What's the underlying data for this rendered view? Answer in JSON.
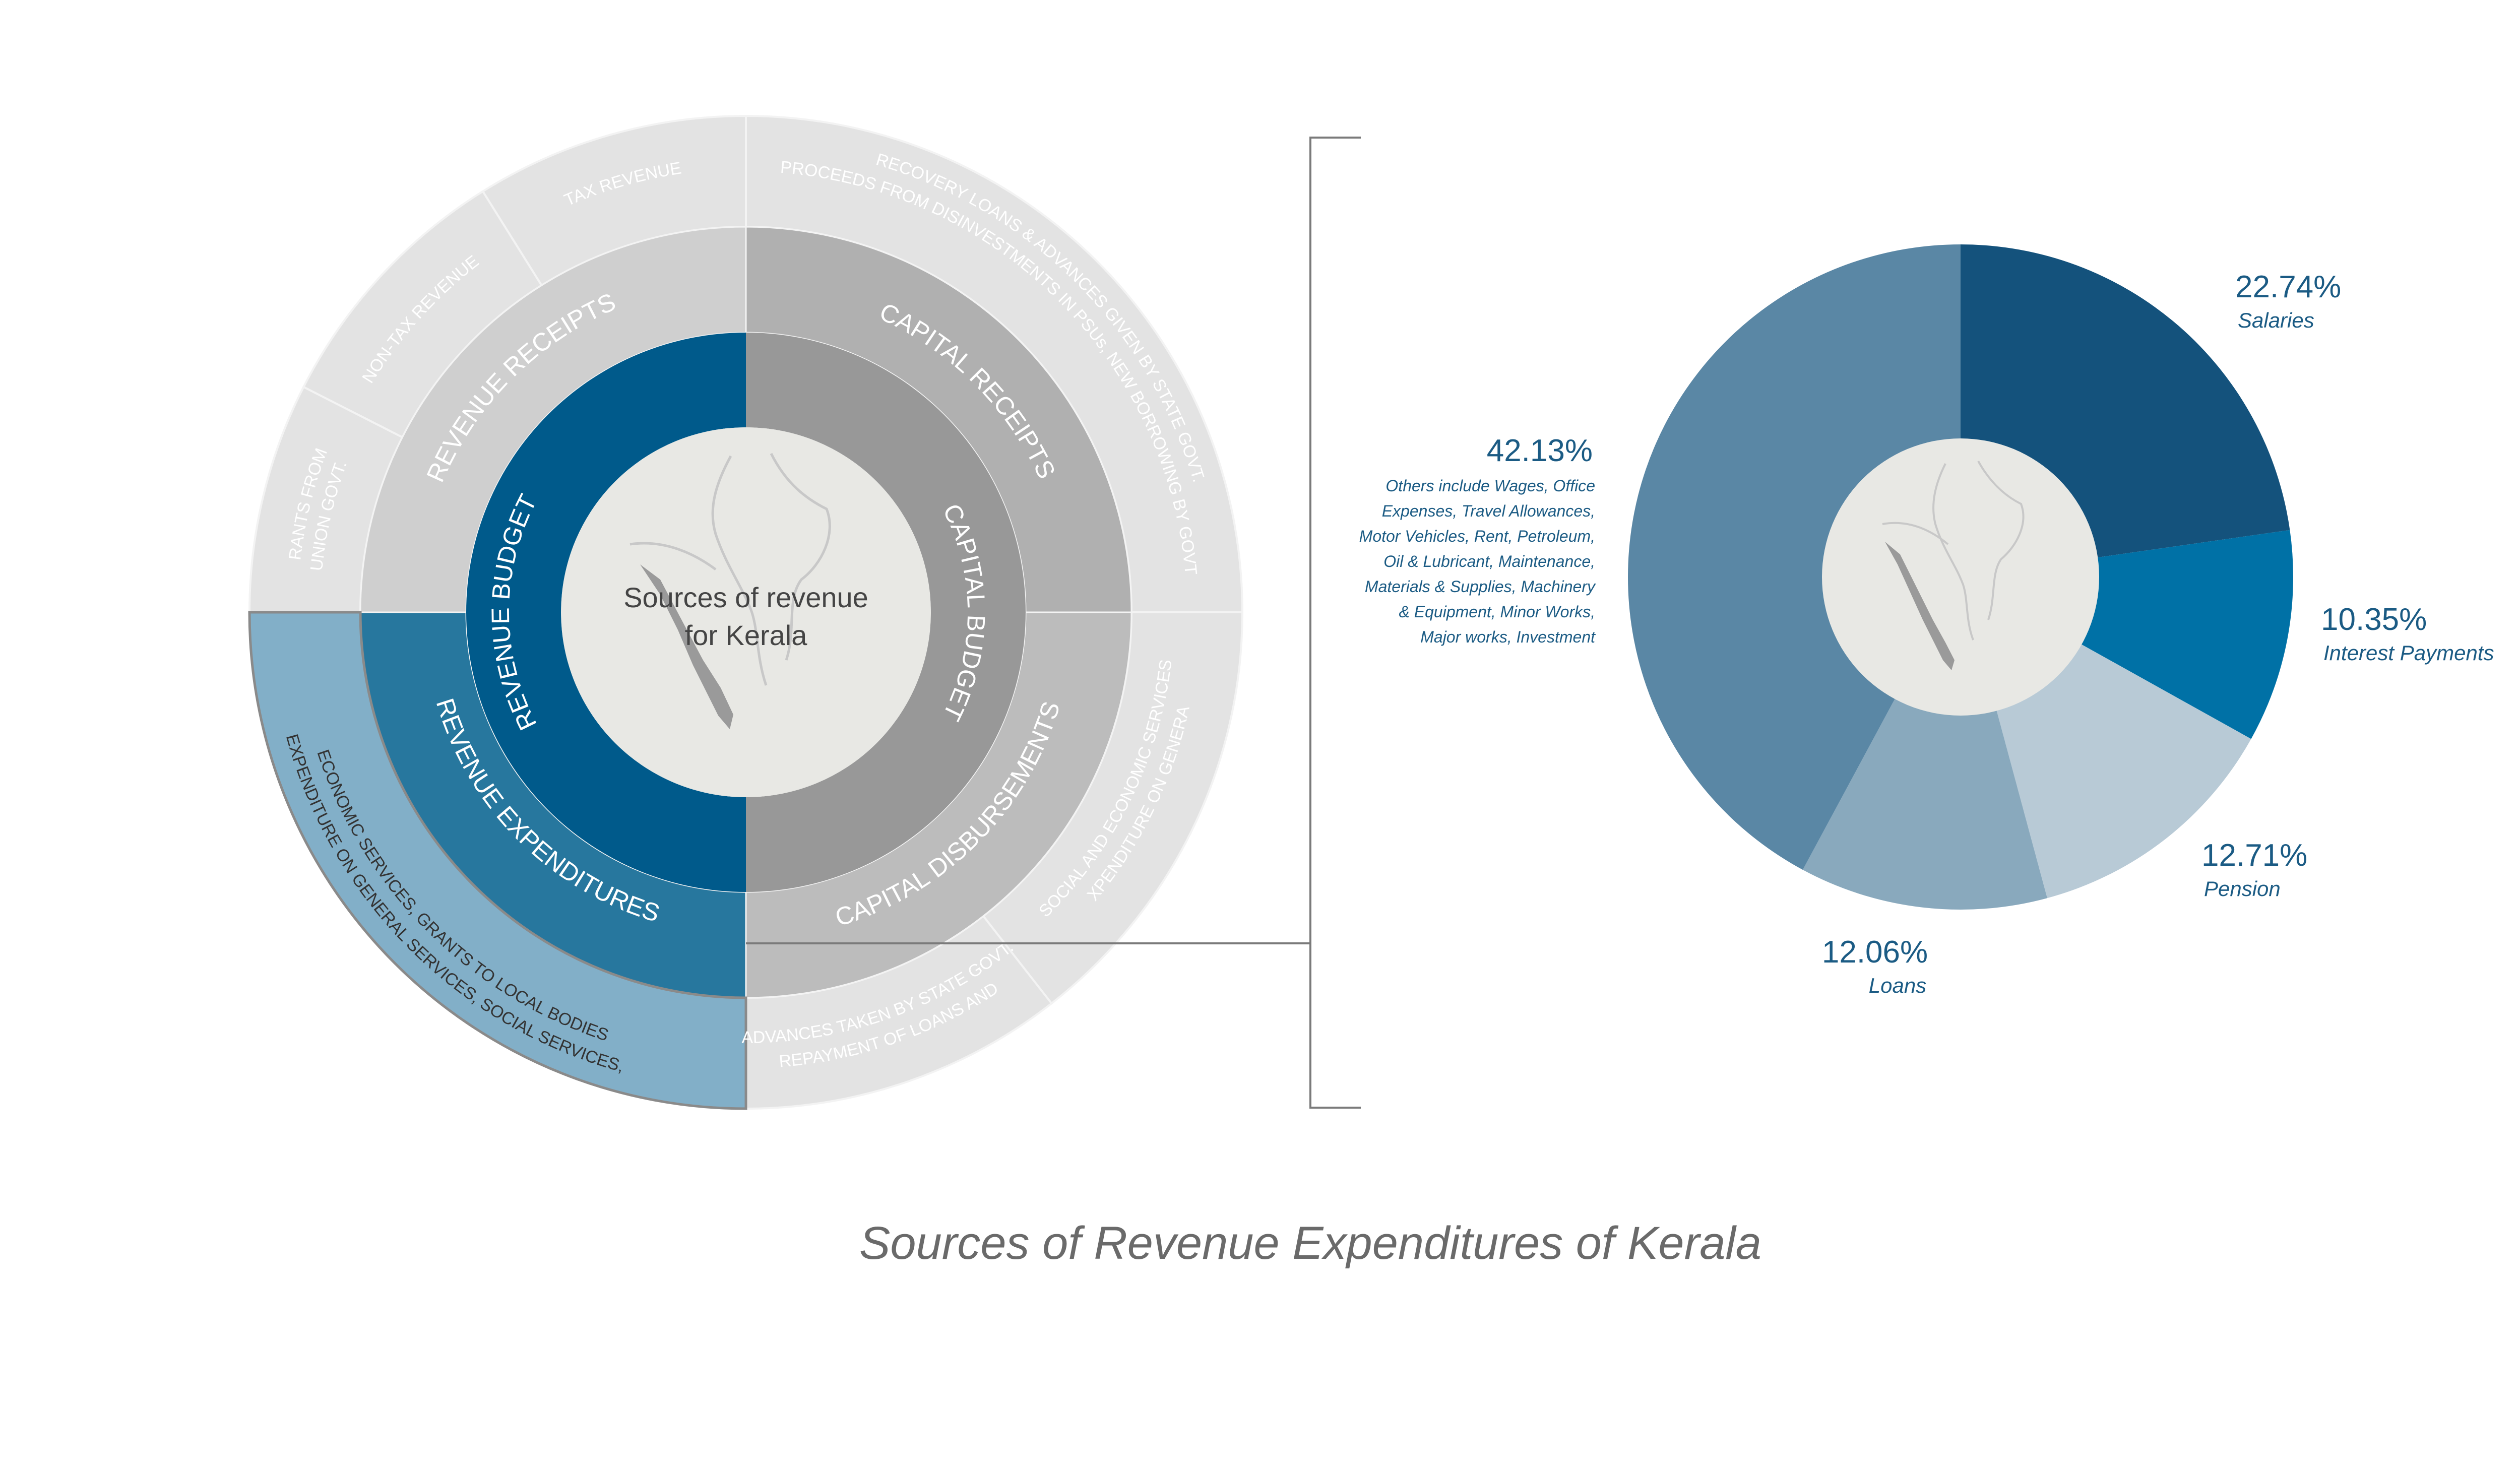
{
  "title": "Sources of Revenue Expenditures of Kerala",
  "center_label": [
    "Sources of revenue",
    "for Kerala"
  ],
  "sunburst": {
    "inner": [
      {
        "name": "inner-revenue-budget",
        "label": "REVENUE  BUDGET",
        "color": "#005a8b",
        "text_color": "#ffffff"
      },
      {
        "name": "inner-capital-budget",
        "label": "CAPITAL  BUDGET",
        "color": "#989898",
        "text_color": "#ffffff"
      }
    ],
    "middle": [
      {
        "name": "middle-revenue-receipts",
        "label": "REVENUE RECEIPTS",
        "color": "#cfcfcf",
        "text_color": "#ffffff"
      },
      {
        "name": "middle-capital-receipts",
        "label": "CAPITAL RECEIPTS",
        "color": "#b0b0b0",
        "text_color": "#ffffff"
      },
      {
        "name": "middle-capital-disbursements",
        "label": "CAPITAL  DISBURSEMENTS",
        "color": "#bcbcbc",
        "text_color": "#ffffff"
      },
      {
        "name": "middle-revenue-expenditures",
        "label": "REVENUE  EXPENDITURES",
        "color": "#27779e",
        "text_color": "#ffffff"
      }
    ],
    "outer": [
      {
        "name": "outer-grants-union",
        "lines": [
          "GRANTS FROM",
          "UNION GOVT."
        ],
        "color": "#e3e3e3",
        "text_color": "#ffffff"
      },
      {
        "name": "outer-non-tax-revenue",
        "lines": [
          "NON-TAX REVENUE"
        ],
        "color": "#e3e3e3",
        "text_color": "#ffffff"
      },
      {
        "name": "outer-tax-revenue",
        "lines": [
          "TAX REVENUE"
        ],
        "color": "#e3e3e3",
        "text_color": "#ffffff"
      },
      {
        "name": "outer-capital-receipts-detail",
        "lines": [
          "RECOVERY LOANS & ADVANCES GIVEN BY STATE GOVT.",
          "PROCEEDS FROM DISINVESTMENTS IN PSUs, NEW BORROWING BY GOVT."
        ],
        "color": "#e3e3e3",
        "text_color": "#ffffff"
      },
      {
        "name": "outer-exp-general-social",
        "lines": [
          "EXPENDITURE ON GENERAL",
          "SOCIAL AND ECONOMIC SERVICES"
        ],
        "color": "#e3e3e3",
        "text_color": "#ffffff"
      },
      {
        "name": "outer-repayment-loans",
        "lines": [
          "REPAYMENT OF LOANS AND",
          "ADVANCES TAKEN BY STATE GOVT."
        ],
        "color": "#e3e3e3",
        "text_color": "#ffffff"
      },
      {
        "name": "outer-revenue-exp-detail",
        "lines": [
          "EXPENDITURE ON GENERAL SERVICES, SOCIAL SERVICES,",
          "ECONOMIC SERVICES, GRANTS TO LOCAL BODIES"
        ],
        "color": "#82afc8",
        "text_color": "#333333"
      }
    ]
  },
  "chart_data": {
    "type": "pie",
    "title": "Sources of Revenue Expenditures of Kerala",
    "categories": [
      "Salaries",
      "Interest Payments",
      "Pension",
      "Loans",
      "Others"
    ],
    "values": [
      22.74,
      10.35,
      12.71,
      12.06,
      42.13
    ],
    "value_labels": [
      "22.74%",
      "10.35%",
      "12.71%",
      "12.06%",
      "42.13%"
    ],
    "colors": [
      "#14527c",
      "#0071a6",
      "#b8cad6",
      "#89a9bd",
      "#5a87a5"
    ],
    "start_angle": "12 o'clock",
    "direction": "clockwise",
    "center_hole": true,
    "others_note": [
      "Others include Wages, Office",
      "Expenses, Travel Allowances,",
      "Motor Vehicles, Rent, Petroleum,",
      "Oil & Lubricant, Maintenance,",
      "Materials & Supplies, Machinery",
      "& Equipment, Minor Works,",
      "Major works, Investment"
    ]
  },
  "colors": {
    "label_blue": "#1b5b84",
    "title_gray": "#6a6a6a",
    "center_fill": "#e8e8e4",
    "map_gray": "#9a9a9a",
    "map_line": "#c8c8c8",
    "connector": "#7a7a7a"
  }
}
